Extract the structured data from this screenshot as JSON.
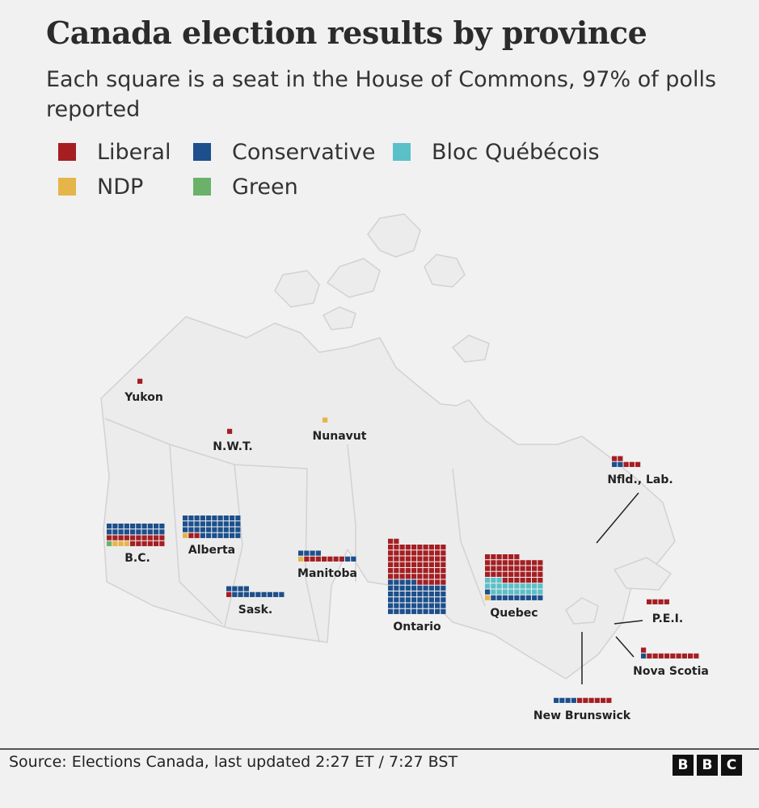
{
  "header": {
    "title": "Canada election results by province",
    "subtitle": "Each square is a seat in the House of Commons, 97% of polls reported"
  },
  "legend": [
    {
      "party": "Liberal",
      "color": "#a51e22"
    },
    {
      "party": "Conservative",
      "color": "#1c4f8c"
    },
    {
      "party": "Bloc Québécois",
      "color": "#5bc0c8"
    },
    {
      "party": "NDP",
      "color": "#e6b54a"
    },
    {
      "party": "Green",
      "color": "#6ab26a"
    }
  ],
  "chart_data": {
    "type": "waffle",
    "title": "Canada election results by province",
    "subtitle": "Each square is a seat in the House of Commons, 97% of polls reported",
    "unit": "seats",
    "regions": [
      {
        "name": "Yukon",
        "seats": {
          "Liberal": 1
        }
      },
      {
        "name": "N.W.T.",
        "seats": {
          "Liberal": 1
        }
      },
      {
        "name": "Nunavut",
        "seats": {
          "NDP": 1
        }
      },
      {
        "name": "B.C.",
        "seats": {
          "Green": 1,
          "NDP": 3,
          "Liberal": 16,
          "Conservative": 20
        }
      },
      {
        "name": "Alberta",
        "seats": {
          "NDP": 1,
          "Liberal": 2,
          "Conservative": 37
        }
      },
      {
        "name": "Sask.",
        "seats": {
          "Liberal": 1,
          "Conservative": 13
        }
      },
      {
        "name": "Manitoba",
        "seats": {
          "NDP": 1,
          "Liberal": 7,
          "Conservative": 6
        }
      },
      {
        "name": "Ontario",
        "seats": {
          "Conservative": 55,
          "Liberal": 67
        }
      },
      {
        "name": "Quebec",
        "seats": {
          "NDP": 1,
          "Conservative": 10,
          "Bloc Québécois": 22,
          "Liberal": 43
        }
      },
      {
        "name": "Nfld., Lab.",
        "seats": {
          "Conservative": 2,
          "Liberal": 5
        }
      },
      {
        "name": "P.E.I.",
        "seats": {
          "Liberal": 4
        }
      },
      {
        "name": "Nova Scotia",
        "seats": {
          "Conservative": 1,
          "Liberal": 10
        }
      },
      {
        "name": "New Brunswick",
        "seats": {
          "Conservative": 4,
          "Liberal": 6
        }
      }
    ]
  },
  "footer": {
    "source": "Source: Elections Canada, last updated  2:27 ET / 7:27 BST",
    "logo_letters": [
      "B",
      "B",
      "C"
    ]
  }
}
